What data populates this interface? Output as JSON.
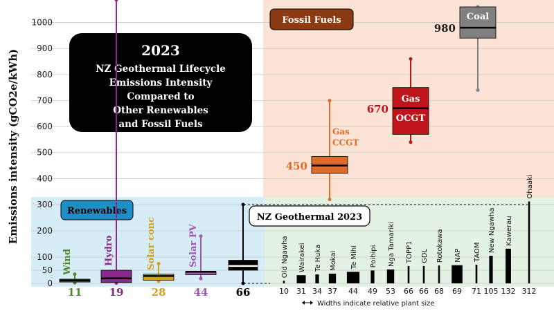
{
  "chart_data": {
    "type": "box",
    "title": "2023\nNZ Geothermal Lifecycle\nEmissions Intensity\nCompared to\nOther Renewables\nand Fossil Fuels",
    "title_lines": [
      "2023",
      "NZ Geothermal Lifecycle",
      "Emissions Intensity",
      "Compared to",
      "Other Renewables",
      "and Fossil Fuels"
    ],
    "ylabel": "Emissions intensity (gCO2e/kWh)",
    "upper_ticks": [
      400,
      500,
      600,
      700,
      800,
      900,
      1000
    ],
    "lower_ticks": [
      0,
      50,
      100,
      200,
      300
    ],
    "groups": {
      "renewables": "Renewables",
      "fossil": "Fossil Fuels",
      "geothermal": "NZ Geothermal 2023"
    },
    "renewables": [
      {
        "name": "Wind",
        "median": 11,
        "q1": 5,
        "q3": 16,
        "min": 2,
        "max": 35,
        "color": "#4f8a2a"
      },
      {
        "name": "Hydro",
        "median": 19,
        "q1": 3,
        "q3": 50,
        "min": 1,
        "max": 2200,
        "color": "#8a2a8a"
      },
      {
        "name": "Solar conc",
        "median": 28,
        "q1": 12,
        "q3": 35,
        "min": 8,
        "max": 75,
        "color": "#d4a017"
      },
      {
        "name": "Solar PV",
        "median": 44,
        "q1": 33,
        "q3": 45,
        "min": 18,
        "max": 180,
        "color": "#9e58b0"
      },
      {
        "name": "",
        "median": 66,
        "q1": 50,
        "q3": 88,
        "min": 0,
        "max": 300,
        "color": "#000000"
      }
    ],
    "fossil": [
      {
        "name": "Gas\nCCGT",
        "median": 450,
        "q1": 420,
        "q3": 485,
        "min": 320,
        "max": 700,
        "color": "#e06c2b"
      },
      {
        "name": "Gas\nOCGT",
        "median": 670,
        "q1": 570,
        "q3": 750,
        "min": 540,
        "max": 860,
        "color": "#c0141c"
      },
      {
        "name": "Coal",
        "median": 980,
        "q1": 940,
        "q3": 1060,
        "min": 740,
        "max": 1060,
        "color": "#808080"
      }
    ],
    "geothermal_plants": [
      {
        "name": "Old Ngawha",
        "value": 10,
        "width": 1
      },
      {
        "name": "Wairakei",
        "value": 31,
        "width": 5
      },
      {
        "name": "Te Huka",
        "value": 34,
        "width": 2
      },
      {
        "name": "Mokai",
        "value": 37,
        "width": 4
      },
      {
        "name": "Te Mihi",
        "value": 44,
        "width": 7
      },
      {
        "name": "Poihipi",
        "value": 49,
        "width": 2
      },
      {
        "name": "Nga Tamariki",
        "value": 53,
        "width": 4
      },
      {
        "name": "TOPP1",
        "value": 66,
        "width": 1
      },
      {
        "name": "GDL",
        "value": 66,
        "width": 1
      },
      {
        "name": "Rotokawa",
        "value": 68,
        "width": 1
      },
      {
        "name": "NAP",
        "value": 69,
        "width": 6
      },
      {
        "name": "TAOM",
        "value": 71,
        "width": 1
      },
      {
        "name": "New Ngawha",
        "value": 105,
        "width": 2
      },
      {
        "name": "Kawerau",
        "value": 132,
        "width": 3
      },
      {
        "name": "Ohaaki",
        "value": 312,
        "width": 1
      }
    ],
    "width_note": "Widths indicate relative plant size"
  }
}
